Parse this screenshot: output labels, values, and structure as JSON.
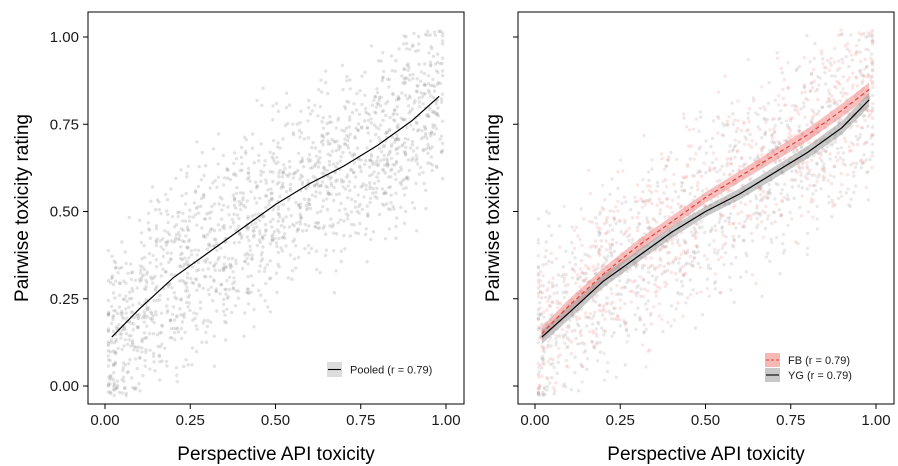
{
  "chart_data": [
    {
      "type": "scatter",
      "panel": "left",
      "xlabel": "Perspective API toxicity",
      "ylabel": "Pairwise toxicity rating",
      "xlim": [
        0,
        1
      ],
      "ylim": [
        0,
        1
      ],
      "x_ticks": [
        "0.00",
        "0.25",
        "0.50",
        "0.75",
        "1.00"
      ],
      "y_ticks": [
        "0.00",
        "0.25",
        "0.50",
        "0.75",
        "1.00"
      ],
      "legend_position": "bottom-right",
      "grid": false,
      "series": [
        {
          "name": "Pooled (r = 0.79)",
          "color": "#000000",
          "point_color": "#9a9a9a",
          "fit": {
            "x": [
              0.02,
              0.1,
              0.2,
              0.3,
              0.4,
              0.5,
              0.6,
              0.7,
              0.8,
              0.9,
              0.98
            ],
            "y": [
              0.14,
              0.22,
              0.31,
              0.38,
              0.45,
              0.52,
              0.58,
              0.63,
              0.69,
              0.76,
              0.83
            ]
          }
        }
      ]
    },
    {
      "type": "scatter",
      "panel": "right",
      "xlabel": "Perspective API toxicity",
      "ylabel": "Pairwise toxicity rating",
      "xlim": [
        0,
        1
      ],
      "ylim": [
        0,
        1
      ],
      "x_ticks": [
        "0.00",
        "0.25",
        "0.50",
        "0.75",
        "1.00"
      ],
      "legend_position": "bottom-right",
      "grid": false,
      "series": [
        {
          "name": "FB (r = 0.79)",
          "color": "#e8413c",
          "band_color": "#f08a86",
          "line_style": "dashed",
          "fit": {
            "x": [
              0.02,
              0.1,
              0.2,
              0.3,
              0.4,
              0.5,
              0.6,
              0.7,
              0.8,
              0.9,
              0.98
            ],
            "y": [
              0.15,
              0.23,
              0.32,
              0.4,
              0.47,
              0.54,
              0.6,
              0.66,
              0.72,
              0.79,
              0.85
            ]
          }
        },
        {
          "name": "YG (r = 0.79)",
          "color": "#000000",
          "band_color": "#9a9a9a",
          "line_style": "solid",
          "fit": {
            "x": [
              0.02,
              0.1,
              0.2,
              0.3,
              0.4,
              0.5,
              0.6,
              0.7,
              0.8,
              0.9,
              0.98
            ],
            "y": [
              0.14,
              0.21,
              0.3,
              0.37,
              0.44,
              0.5,
              0.55,
              0.61,
              0.67,
              0.74,
              0.82
            ]
          }
        }
      ]
    }
  ]
}
